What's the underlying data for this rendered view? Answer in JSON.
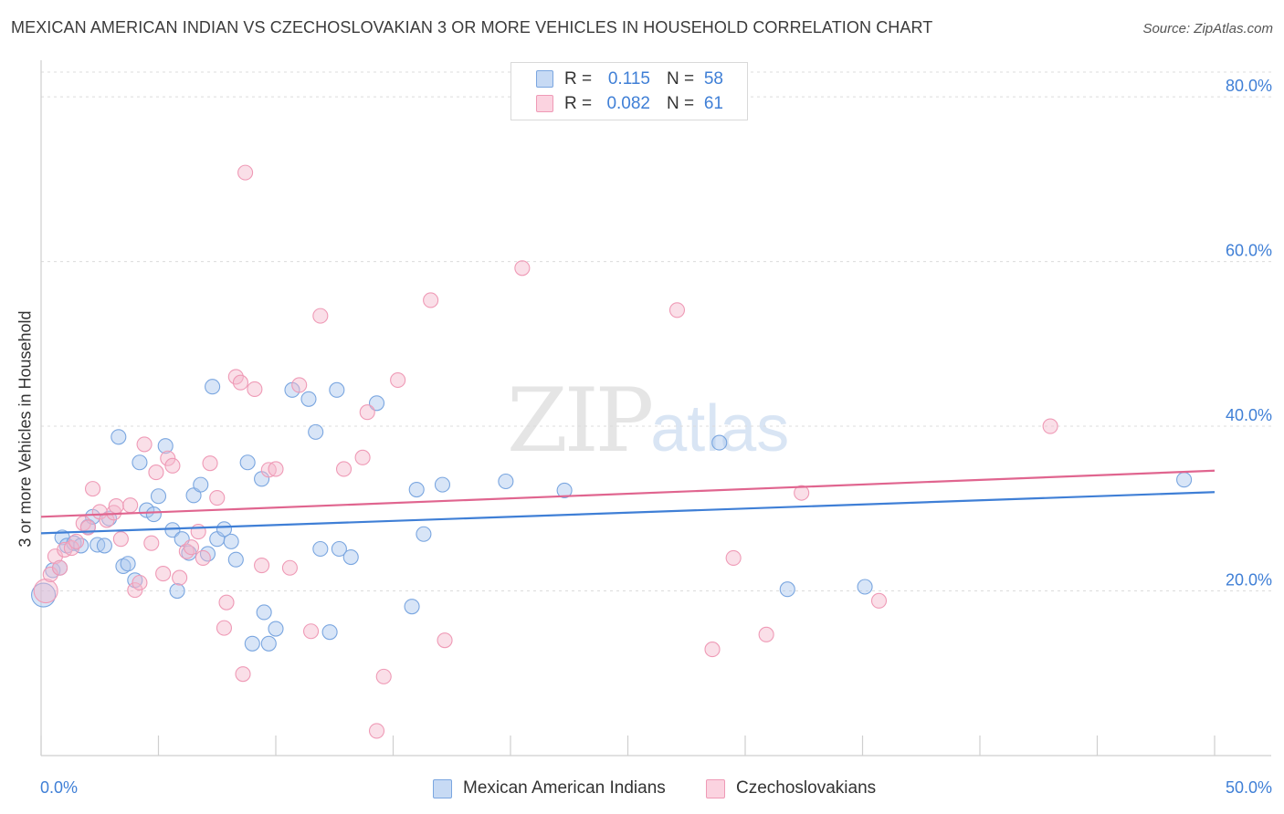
{
  "title": "MEXICAN AMERICAN INDIAN VS CZECHOSLOVAKIAN 3 OR MORE VEHICLES IN HOUSEHOLD CORRELATION CHART",
  "source": "Source: ZipAtlas.com",
  "watermark": {
    "zip": "ZIP",
    "atlas": "atlas"
  },
  "colors": {
    "blue": "#3f7fd6",
    "pink": "#e0658f",
    "blue_fill": "#a9c6ee",
    "pink_fill": "#f5b8cc"
  },
  "legend_top": {
    "rows": [
      {
        "r_label": "R =",
        "r_value": "0.115",
        "n_label": "N =",
        "n_value": "58"
      },
      {
        "r_label": "R =",
        "r_value": "0.082",
        "n_label": "N =",
        "n_value": "61"
      }
    ]
  },
  "chart_data": {
    "type": "scatter",
    "title": "MEXICAN AMERICAN INDIAN VS CZECHOSLOVAKIAN 3 OR MORE VEHICLES IN HOUSEHOLD CORRELATION CHART",
    "xlabel": "",
    "ylabel": "3 or more Vehicles in Household",
    "xlim": [
      0,
      50
    ],
    "ylim": [
      0,
      84
    ],
    "x_tick_labels": [
      "0.0%",
      "50.0%"
    ],
    "y_ticks": [
      20,
      40,
      60,
      80
    ],
    "y_tick_labels": [
      "20.0%",
      "40.0%",
      "60.0%",
      "80.0%"
    ],
    "grid": true,
    "legend_position": "bottom",
    "series": [
      {
        "name": "Mexican American Indians",
        "color": "#3f7fd6",
        "trend": {
          "x": [
            0,
            50
          ],
          "y": [
            27.0,
            32.0
          ]
        },
        "points": [
          {
            "x": 0.1,
            "y": 19.5
          },
          {
            "x": 0.5,
            "y": 22.5
          },
          {
            "x": 0.8,
            "y": 22.8
          },
          {
            "x": 0.9,
            "y": 26.5
          },
          {
            "x": 1.1,
            "y": 25.5
          },
          {
            "x": 1.4,
            "y": 25.8
          },
          {
            "x": 1.7,
            "y": 25.5
          },
          {
            "x": 2.0,
            "y": 27.8
          },
          {
            "x": 2.2,
            "y": 29.0
          },
          {
            "x": 2.4,
            "y": 25.6
          },
          {
            "x": 2.7,
            "y": 25.5
          },
          {
            "x": 2.9,
            "y": 28.8
          },
          {
            "x": 3.3,
            "y": 38.7
          },
          {
            "x": 3.5,
            "y": 23.0
          },
          {
            "x": 3.7,
            "y": 23.3
          },
          {
            "x": 4.0,
            "y": 21.3
          },
          {
            "x": 4.2,
            "y": 35.6
          },
          {
            "x": 4.5,
            "y": 29.8
          },
          {
            "x": 4.8,
            "y": 29.3
          },
          {
            "x": 5.0,
            "y": 31.5
          },
          {
            "x": 5.3,
            "y": 37.6
          },
          {
            "x": 5.6,
            "y": 27.4
          },
          {
            "x": 5.8,
            "y": 20.0
          },
          {
            "x": 6.0,
            "y": 26.3
          },
          {
            "x": 6.3,
            "y": 24.6
          },
          {
            "x": 6.5,
            "y": 31.6
          },
          {
            "x": 6.8,
            "y": 32.9
          },
          {
            "x": 7.1,
            "y": 24.5
          },
          {
            "x": 7.3,
            "y": 44.8
          },
          {
            "x": 7.5,
            "y": 26.3
          },
          {
            "x": 7.8,
            "y": 27.5
          },
          {
            "x": 8.1,
            "y": 26.0
          },
          {
            "x": 8.3,
            "y": 23.8
          },
          {
            "x": 8.8,
            "y": 35.6
          },
          {
            "x": 9.0,
            "y": 13.6
          },
          {
            "x": 9.4,
            "y": 33.6
          },
          {
            "x": 9.5,
            "y": 17.4
          },
          {
            "x": 9.7,
            "y": 13.6
          },
          {
            "x": 10.0,
            "y": 15.4
          },
          {
            "x": 10.7,
            "y": 44.4
          },
          {
            "x": 11.4,
            "y": 43.3
          },
          {
            "x": 11.7,
            "y": 39.3
          },
          {
            "x": 11.9,
            "y": 25.1
          },
          {
            "x": 12.3,
            "y": 15.0
          },
          {
            "x": 12.6,
            "y": 44.4
          },
          {
            "x": 12.7,
            "y": 25.1
          },
          {
            "x": 13.2,
            "y": 24.1
          },
          {
            "x": 14.3,
            "y": 42.8
          },
          {
            "x": 15.8,
            "y": 18.1
          },
          {
            "x": 16.0,
            "y": 32.3
          },
          {
            "x": 16.3,
            "y": 26.9
          },
          {
            "x": 17.1,
            "y": 32.9
          },
          {
            "x": 19.8,
            "y": 33.3
          },
          {
            "x": 22.3,
            "y": 32.2
          },
          {
            "x": 28.9,
            "y": 38.0
          },
          {
            "x": 31.8,
            "y": 20.2
          },
          {
            "x": 35.1,
            "y": 20.5
          },
          {
            "x": 48.7,
            "y": 33.5
          }
        ]
      },
      {
        "name": "Czechoslovakians",
        "color": "#e0658f",
        "trend": {
          "x": [
            0,
            50
          ],
          "y": [
            29.0,
            34.6
          ]
        },
        "points": [
          {
            "x": 0.2,
            "y": 20.0
          },
          {
            "x": 0.4,
            "y": 22.0
          },
          {
            "x": 0.6,
            "y": 24.2
          },
          {
            "x": 0.8,
            "y": 22.8
          },
          {
            "x": 1.0,
            "y": 25.0
          },
          {
            "x": 1.3,
            "y": 25.2
          },
          {
            "x": 1.5,
            "y": 26.0
          },
          {
            "x": 1.8,
            "y": 28.2
          },
          {
            "x": 2.0,
            "y": 27.7
          },
          {
            "x": 2.2,
            "y": 32.4
          },
          {
            "x": 2.5,
            "y": 29.6
          },
          {
            "x": 2.8,
            "y": 28.6
          },
          {
            "x": 3.1,
            "y": 29.5
          },
          {
            "x": 3.2,
            "y": 30.3
          },
          {
            "x": 3.4,
            "y": 26.3
          },
          {
            "x": 3.8,
            "y": 30.4
          },
          {
            "x": 4.0,
            "y": 20.1
          },
          {
            "x": 4.2,
            "y": 21.0
          },
          {
            "x": 4.4,
            "y": 37.8
          },
          {
            "x": 4.7,
            "y": 25.8
          },
          {
            "x": 4.9,
            "y": 34.4
          },
          {
            "x": 5.2,
            "y": 22.1
          },
          {
            "x": 5.4,
            "y": 36.1
          },
          {
            "x": 5.6,
            "y": 35.2
          },
          {
            "x": 5.9,
            "y": 21.6
          },
          {
            "x": 6.2,
            "y": 24.8
          },
          {
            "x": 6.4,
            "y": 25.3
          },
          {
            "x": 6.7,
            "y": 27.2
          },
          {
            "x": 6.9,
            "y": 24.0
          },
          {
            "x": 7.2,
            "y": 35.5
          },
          {
            "x": 7.5,
            "y": 31.3
          },
          {
            "x": 7.8,
            "y": 15.5
          },
          {
            "x": 7.9,
            "y": 18.6
          },
          {
            "x": 8.3,
            "y": 46.0
          },
          {
            "x": 8.5,
            "y": 45.3
          },
          {
            "x": 8.6,
            "y": 9.9
          },
          {
            "x": 8.7,
            "y": 70.8
          },
          {
            "x": 9.1,
            "y": 44.5
          },
          {
            "x": 9.4,
            "y": 23.1
          },
          {
            "x": 9.7,
            "y": 34.7
          },
          {
            "x": 10.0,
            "y": 34.8
          },
          {
            "x": 10.6,
            "y": 22.8
          },
          {
            "x": 11.0,
            "y": 45.0
          },
          {
            "x": 11.5,
            "y": 15.1
          },
          {
            "x": 11.9,
            "y": 53.4
          },
          {
            "x": 12.9,
            "y": 34.8
          },
          {
            "x": 13.7,
            "y": 36.2
          },
          {
            "x": 13.9,
            "y": 41.7
          },
          {
            "x": 14.3,
            "y": 3.0
          },
          {
            "x": 14.6,
            "y": 9.6
          },
          {
            "x": 15.2,
            "y": 45.6
          },
          {
            "x": 16.6,
            "y": 55.3
          },
          {
            "x": 17.2,
            "y": 14.0
          },
          {
            "x": 20.5,
            "y": 59.2
          },
          {
            "x": 27.1,
            "y": 54.1
          },
          {
            "x": 28.6,
            "y": 12.9
          },
          {
            "x": 29.5,
            "y": 24.0
          },
          {
            "x": 30.9,
            "y": 14.7
          },
          {
            "x": 32.4,
            "y": 31.9
          },
          {
            "x": 35.7,
            "y": 18.8
          },
          {
            "x": 43.0,
            "y": 40.0
          }
        ]
      }
    ]
  },
  "legend_bottom": {
    "items": [
      {
        "label": "Mexican American Indians"
      },
      {
        "label": "Czechoslovakians"
      }
    ]
  }
}
